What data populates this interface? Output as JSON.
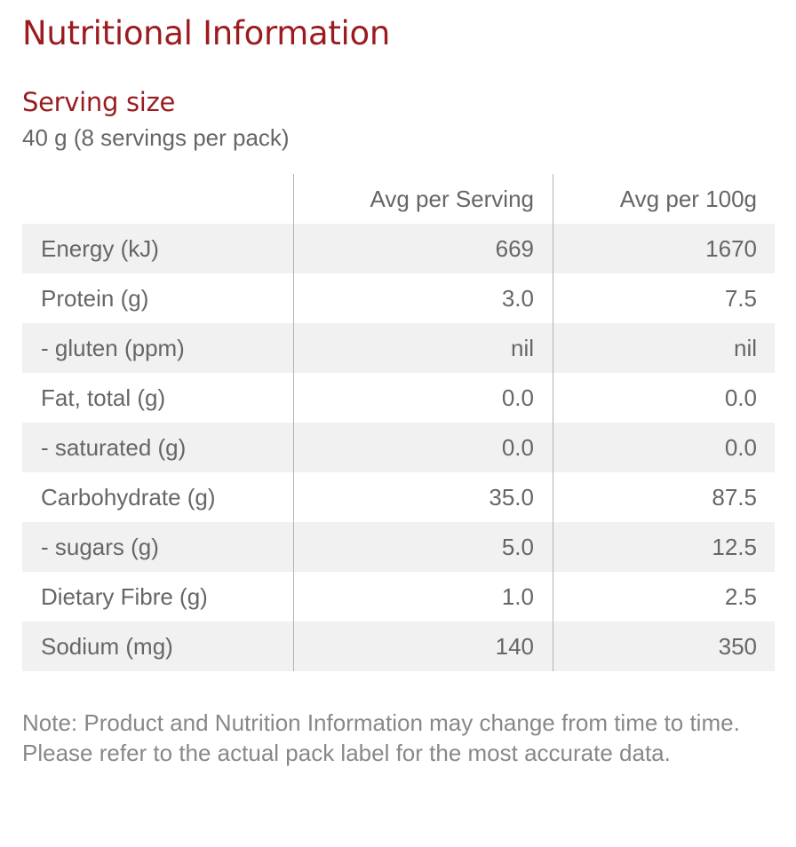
{
  "title": "Nutritional Information",
  "serving": {
    "label": "Serving size",
    "value": "40 g (8 servings per pack)"
  },
  "table": {
    "headers": [
      "",
      "Avg per Serving",
      "Avg per 100g"
    ],
    "rows": [
      {
        "name": "Energy (kJ)",
        "per_serving": "669",
        "per_100g": "1670"
      },
      {
        "name": "Protein (g)",
        "per_serving": "3.0",
        "per_100g": "7.5"
      },
      {
        "name": "- gluten (ppm)",
        "per_serving": "nil",
        "per_100g": "nil"
      },
      {
        "name": "Fat, total (g)",
        "per_serving": "0.0",
        "per_100g": "0.0"
      },
      {
        "name": "- saturated (g)",
        "per_serving": "0.0",
        "per_100g": "0.0"
      },
      {
        "name": "Carbohydrate (g)",
        "per_serving": "35.0",
        "per_100g": "87.5"
      },
      {
        "name": "- sugars (g)",
        "per_serving": "5.0",
        "per_100g": "12.5"
      },
      {
        "name": "Dietary Fibre (g)",
        "per_serving": "1.0",
        "per_100g": "2.5"
      },
      {
        "name": "Sodium (mg)",
        "per_serving": "140",
        "per_100g": "350"
      }
    ]
  },
  "note": "Note: Product and Nutrition Information may change from time to time. Please refer to the actual pack label for the most accurate data.",
  "colors": {
    "heading": "#9b1b1f",
    "text": "#666666",
    "row_shade": "#f1f1f1",
    "divider": "#b3b3b3"
  }
}
